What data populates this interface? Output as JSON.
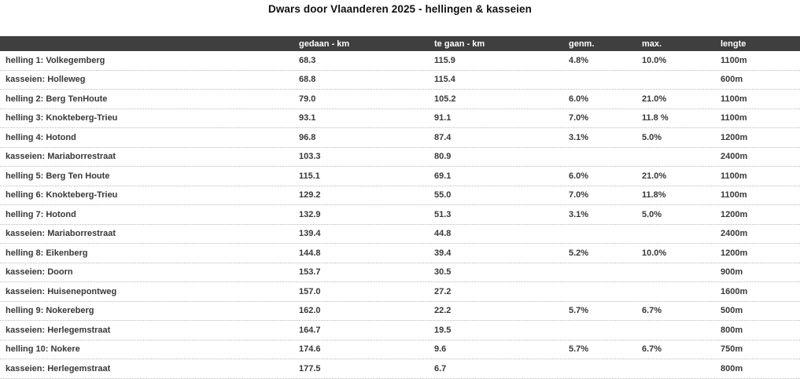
{
  "chart_data": {
    "type": "table",
    "title": "Dwars door Vlaanderen 2025 - hellingen & kasseien",
    "columns": [
      "",
      "gedaan - km",
      "te gaan - km",
      "genm.",
      "max.",
      "lengte"
    ],
    "rows": [
      {
        "name": "helling 1: Volkegemberg",
        "gedaan_km": "68.3",
        "te_gaan_km": "115.9",
        "genm": "4.8%",
        "max": "10.0%",
        "lengte": "1100m"
      },
      {
        "name": "kasseien: Holleweg",
        "gedaan_km": "68.8",
        "te_gaan_km": "115.4",
        "genm": "",
        "max": "",
        "lengte": "600m"
      },
      {
        "name": "helling 2: Berg TenHoute",
        "gedaan_km": "79.0",
        "te_gaan_km": "105.2",
        "genm": "6.0%",
        "max": "21.0%",
        "lengte": "1100m"
      },
      {
        "name": "helling 3: Knokteberg-Trieu",
        "gedaan_km": "93.1",
        "te_gaan_km": "91.1",
        "genm": "7.0%",
        "max": "11.8 %",
        "lengte": "1100m"
      },
      {
        "name": "helling 4: Hotond",
        "gedaan_km": "96.8",
        "te_gaan_km": "87.4",
        "genm": "3.1%",
        "max": "5.0%",
        "lengte": "1200m"
      },
      {
        "name": "kasseien: Mariaborrestraat",
        "gedaan_km": "103.3",
        "te_gaan_km": "80.9",
        "genm": "",
        "max": "",
        "lengte": "2400m"
      },
      {
        "name": "helling 5: Berg Ten Houte",
        "gedaan_km": "115.1",
        "te_gaan_km": "69.1",
        "genm": "6.0%",
        "max": "21.0%",
        "lengte": "1100m"
      },
      {
        "name": "helling 6: Knokteberg-Trieu",
        "gedaan_km": "129.2",
        "te_gaan_km": "55.0",
        "genm": "7.0%",
        "max": "11.8%",
        "lengte": "1100m"
      },
      {
        "name": "helling 7: Hotond",
        "gedaan_km": "132.9",
        "te_gaan_km": "51.3",
        "genm": "3.1%",
        "max": "5.0%",
        "lengte": "1200m"
      },
      {
        "name": "kasseien: Mariaborrestraat",
        "gedaan_km": "139.4",
        "te_gaan_km": "44.8",
        "genm": "",
        "max": "",
        "lengte": "2400m"
      },
      {
        "name": "helling 8: Eikenberg",
        "gedaan_km": "144.8",
        "te_gaan_km": "39.4",
        "genm": "5.2%",
        "max": "10.0%",
        "lengte": "1200m"
      },
      {
        "name": "kasseien: Doorn",
        "gedaan_km": "153.7",
        "te_gaan_km": "30.5",
        "genm": "",
        "max": "",
        "lengte": "900m"
      },
      {
        "name": "kasseien: Huisenepontweg",
        "gedaan_km": "157.0",
        "te_gaan_km": "27.2",
        "genm": "",
        "max": "",
        "lengte": "1600m"
      },
      {
        "name": "helling 9: Nokereberg",
        "gedaan_km": "162.0",
        "te_gaan_km": "22.2",
        "genm": "5.7%",
        "max": "6.7%",
        "lengte": "500m"
      },
      {
        "name": "kasseien: Herlegemstraat",
        "gedaan_km": "164.7",
        "te_gaan_km": "19.5",
        "genm": "",
        "max": "",
        "lengte": "800m"
      },
      {
        "name": "helling 10: Nokere",
        "gedaan_km": "174.6",
        "te_gaan_km": "9.6",
        "genm": "5.7%",
        "max": "6.7%",
        "lengte": "750m"
      },
      {
        "name": "kasseien: Herlegemstraat",
        "gedaan_km": "177.5",
        "te_gaan_km": "6.7",
        "genm": "",
        "max": "",
        "lengte": "800m"
      }
    ],
    "layout_hints": {
      "header_style": "dark bar with white text",
      "row_dividers": "dotted",
      "column_alignment": "left"
    }
  },
  "colors": {
    "header_bg": "#3f3f3f",
    "header_text": "#ffffff",
    "body_text": "#383838",
    "divider": "#b9b9b9",
    "background": "#ffffff"
  }
}
